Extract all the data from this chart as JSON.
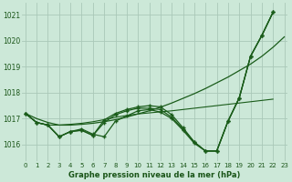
{
  "background_color": "#cce8d8",
  "grid_color": "#aac8b8",
  "line_color": "#1a5c1a",
  "title": "Graphe pression niveau de la mer (hPa)",
  "ylabel_values": [
    1016,
    1017,
    1018,
    1019,
    1020,
    1021
  ],
  "x_labels": [
    "0",
    "1",
    "2",
    "3",
    "4",
    "5",
    "6",
    "7",
    "8",
    "9",
    "10",
    "11",
    "12",
    "13",
    "14",
    "15",
    "16",
    "17",
    "18",
    "19",
    "20",
    "21",
    "22",
    "23"
  ],
  "ylim": [
    1015.35,
    1021.45
  ],
  "xlim": [
    -0.3,
    23.3
  ],
  "line1_straight": [
    1017.2,
    1017.0,
    1016.85,
    1016.75,
    1016.75,
    1016.78,
    1016.82,
    1016.88,
    1016.96,
    1017.06,
    1017.18,
    1017.3,
    1017.44,
    1017.6,
    1017.78,
    1017.96,
    1018.16,
    1018.38,
    1018.6,
    1018.85,
    1019.1,
    1019.4,
    1019.75,
    1020.15
  ],
  "line2_with_markers": [
    1017.2,
    1016.85,
    1016.75,
    1016.3,
    1016.5,
    1016.55,
    1016.35,
    1016.85,
    1017.15,
    1017.3,
    1017.4,
    1017.4,
    1017.35,
    1017.05,
    1016.6,
    1016.1,
    1015.75,
    1015.75,
    1016.9,
    1017.8,
    1019.4,
    1020.2,
    1021.1,
    null
  ],
  "line3_with_markers": [
    1017.2,
    1016.85,
    1016.75,
    1016.3,
    1016.5,
    1016.55,
    1016.35,
    1016.95,
    1017.2,
    1017.35,
    1017.45,
    1017.5,
    1017.45,
    1017.15,
    1016.65,
    1016.1,
    1015.75,
    1015.75,
    1016.9,
    1017.8,
    1019.4,
    1020.2,
    1021.1,
    null
  ],
  "line4_flat": [
    1017.2,
    1016.85,
    1016.75,
    1016.75,
    1016.78,
    1016.82,
    1016.88,
    1016.96,
    1017.05,
    1017.12,
    1017.18,
    1017.22,
    1017.26,
    1017.3,
    1017.35,
    1017.4,
    1017.45,
    1017.5,
    1017.55,
    1017.6,
    1017.65,
    1017.7,
    1017.75,
    null
  ],
  "line5_wiggly": [
    1017.2,
    1016.85,
    1016.75,
    1016.3,
    1016.5,
    1016.6,
    1016.4,
    1016.3,
    1016.9,
    1017.1,
    1017.3,
    1017.35,
    1017.25,
    1017.0,
    1016.55,
    1016.05,
    1015.75,
    1015.75,
    1016.9,
    1017.8,
    1019.4,
    1020.2,
    1021.1,
    null
  ]
}
